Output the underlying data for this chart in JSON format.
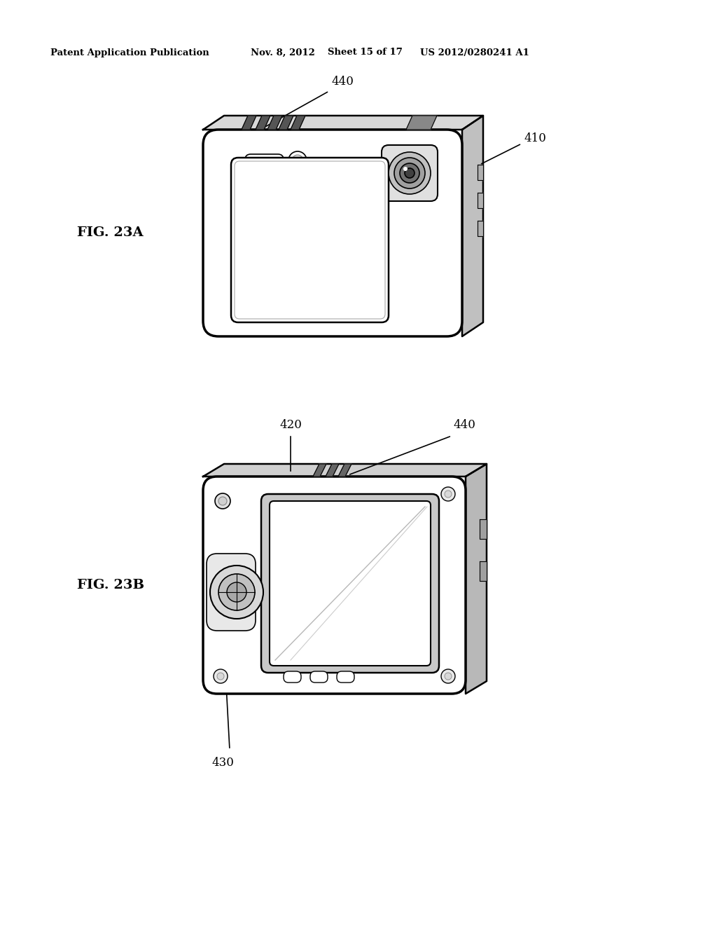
{
  "background_color": "#ffffff",
  "header_text": "Patent Application Publication",
  "header_date": "Nov. 8, 2012",
  "header_sheet": "Sheet 15 of 17",
  "header_patent": "US 2012/0280241 A1",
  "fig_23a_label": "FIG. 23A",
  "fig_23b_label": "FIG. 23B",
  "label_440_a": "440",
  "label_410_a": "410",
  "label_420_b": "420",
  "label_440_b": "440",
  "label_430_b": "430",
  "line_color": "#000000",
  "lw": 1.8,
  "tlw": 2.5
}
